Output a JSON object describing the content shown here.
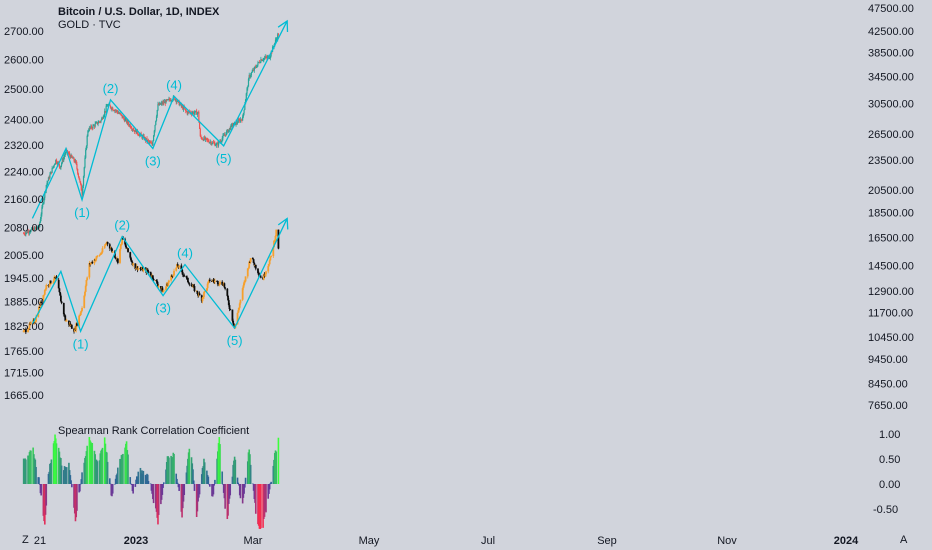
{
  "header": {
    "title": "Bitcoin / U.S. Dollar, 1D, INDEX",
    "subtitle": "GOLD · TVC"
  },
  "indicator": {
    "title": "Spearman Rank Correlation Coefficient"
  },
  "corner": {
    "left": "Z",
    "right": "A"
  },
  "colors": {
    "background": "#d1d4dc",
    "bull": "#26a69a",
    "bear": "#ef5350",
    "gold_up": "#f6a02d",
    "gold_down": "#0c0c0c",
    "wave": "#00bcd4",
    "hist_pos_low": "#2e5d9c",
    "hist_pos_high": "#3cff3c",
    "hist_neg_low": "#5a3aa0",
    "hist_neg_high": "#ff2a4a"
  },
  "chart_data": [
    {
      "type": "candlestick",
      "name": "Bitcoin / U.S. Dollar",
      "axis": "right",
      "y_ticks": [
        "47500.00",
        "42500.00",
        "38500.00",
        "34500.00",
        "30500.00",
        "26500.00",
        "23500.00",
        "20500.00",
        "18500.00",
        "16500.00",
        "14500.00",
        "12900.00",
        "11700.00",
        "10450.00",
        "9450.00",
        "8450.00",
        "7650.00"
      ],
      "x_labels": [
        "21",
        "2023",
        "Mar",
        "May",
        "Jul",
        "Sep",
        "Nov",
        "2024"
      ],
      "anchors": [
        {
          "x": "2022-12-20",
          "y": 16800
        },
        {
          "x": "2023-01-10",
          "y": 17300
        },
        {
          "x": "2023-01-20",
          "y": 21000
        },
        {
          "x": "2023-02-02",
          "y": 23500
        },
        {
          "x": "2023-02-08",
          "y": 22800
        },
        {
          "x": "2023-02-16",
          "y": 24500
        },
        {
          "x": "2023-03-01",
          "y": 23300
        },
        {
          "x": "2023-03-10",
          "y": 20200
        },
        {
          "x": "2023-03-18",
          "y": 27000
        },
        {
          "x": "2023-04-05",
          "y": 28200
        },
        {
          "x": "2023-04-14",
          "y": 30300
        },
        {
          "x": "2023-04-28",
          "y": 29300
        },
        {
          "x": "2023-05-20",
          "y": 27000
        },
        {
          "x": "2023-06-14",
          "y": 25200
        },
        {
          "x": "2023-06-22",
          "y": 30200
        },
        {
          "x": "2023-07-14",
          "y": 31300
        },
        {
          "x": "2023-07-31",
          "y": 29300
        },
        {
          "x": "2023-08-16",
          "y": 29200
        },
        {
          "x": "2023-08-19",
          "y": 26100
        },
        {
          "x": "2023-09-11",
          "y": 25200
        },
        {
          "x": "2023-10-01",
          "y": 27500
        },
        {
          "x": "2023-10-16",
          "y": 28500
        },
        {
          "x": "2023-10-25",
          "y": 34500
        },
        {
          "x": "2023-11-10",
          "y": 37300
        },
        {
          "x": "2023-11-22",
          "y": 37800
        },
        {
          "x": "2023-12-04",
          "y": 42000
        },
        {
          "x": "2023-12-06",
          "y": 44000
        }
      ],
      "elliott_wave": [
        {
          "label": "",
          "x": "2023-01-01",
          "y": 18000
        },
        {
          "label": "",
          "x": "2023-02-16",
          "y": 24800
        },
        {
          "label": "(1)",
          "x": "2023-03-10",
          "y": 19600
        },
        {
          "label": "(2)",
          "x": "2023-04-18",
          "y": 31000
        },
        {
          "label": "(3)",
          "x": "2023-06-15",
          "y": 24800
        },
        {
          "label": "(4)",
          "x": "2023-07-14",
          "y": 31500
        },
        {
          "label": "(5)",
          "x": "2023-09-20",
          "y": 25100
        },
        {
          "label": "",
          "x": "2023-12-16",
          "y": 44500
        }
      ]
    },
    {
      "type": "bar",
      "name": "GOLD · TVC",
      "axis": "left",
      "y_ticks": [
        "2700.00",
        "2600.00",
        "2500.00",
        "2400.00",
        "2320.00",
        "2240.00",
        "2160.00",
        "2080.00",
        "2005.00",
        "1945.00",
        "1885.00",
        "1825.00",
        "1765.00",
        "1715.00",
        "1665.00"
      ],
      "anchors": [
        {
          "x": "2022-12-20",
          "y": 1810
        },
        {
          "x": "2023-01-05",
          "y": 1840
        },
        {
          "x": "2023-01-20",
          "y": 1925
        },
        {
          "x": "2023-02-02",
          "y": 1945
        },
        {
          "x": "2023-02-15",
          "y": 1840
        },
        {
          "x": "2023-02-28",
          "y": 1815
        },
        {
          "x": "2023-03-10",
          "y": 1870
        },
        {
          "x": "2023-03-20",
          "y": 1980
        },
        {
          "x": "2023-04-05",
          "y": 2010
        },
        {
          "x": "2023-04-13",
          "y": 2040
        },
        {
          "x": "2023-04-28",
          "y": 1990
        },
        {
          "x": "2023-05-04",
          "y": 2050
        },
        {
          "x": "2023-05-20",
          "y": 1975
        },
        {
          "x": "2023-06-10",
          "y": 1960
        },
        {
          "x": "2023-06-29",
          "y": 1910
        },
        {
          "x": "2023-07-19",
          "y": 1978
        },
        {
          "x": "2023-08-01",
          "y": 1940
        },
        {
          "x": "2023-08-21",
          "y": 1892
        },
        {
          "x": "2023-09-01",
          "y": 1940
        },
        {
          "x": "2023-09-20",
          "y": 1930
        },
        {
          "x": "2023-10-05",
          "y": 1820
        },
        {
          "x": "2023-10-16",
          "y": 1915
        },
        {
          "x": "2023-10-27",
          "y": 2000
        },
        {
          "x": "2023-11-12",
          "y": 1940
        },
        {
          "x": "2023-11-24",
          "y": 2000
        },
        {
          "x": "2023-12-01",
          "y": 2070
        },
        {
          "x": "2023-12-04",
          "y": 2025
        }
      ],
      "elliott_wave": [
        {
          "label": "",
          "x": "2023-01-01",
          "y": 1830
        },
        {
          "label": "",
          "x": "2023-02-09",
          "y": 1962
        },
        {
          "label": "(1)",
          "x": "2023-03-08",
          "y": 1812
        },
        {
          "label": "(2)",
          "x": "2023-05-04",
          "y": 2055
        },
        {
          "label": "(3)",
          "x": "2023-06-29",
          "y": 1900
        },
        {
          "label": "(4)",
          "x": "2023-07-29",
          "y": 1980
        },
        {
          "label": "(5)",
          "x": "2023-10-05",
          "y": 1820
        },
        {
          "label": "",
          "x": "2023-12-16",
          "y": 2105
        }
      ]
    },
    {
      "type": "histogram",
      "name": "Spearman Rank Correlation Coefficient",
      "axis": "right",
      "y_ticks": [
        "1.00",
        "0.50",
        "0.00",
        "-0.50"
      ],
      "ylim": [
        -0.95,
        1.05
      ],
      "anchors": [
        {
          "x": "2022-12-20",
          "y": 0.45
        },
        {
          "x": "2023-01-02",
          "y": 0.7
        },
        {
          "x": "2023-01-10",
          "y": 0.1
        },
        {
          "x": "2023-01-18",
          "y": -0.85
        },
        {
          "x": "2023-01-23",
          "y": 0.2
        },
        {
          "x": "2023-02-01",
          "y": 0.97
        },
        {
          "x": "2023-02-12",
          "y": 0.3
        },
        {
          "x": "2023-02-20",
          "y": 0.4
        },
        {
          "x": "2023-03-01",
          "y": -0.75
        },
        {
          "x": "2023-03-10",
          "y": 0.2
        },
        {
          "x": "2023-03-20",
          "y": 0.95
        },
        {
          "x": "2023-04-01",
          "y": 0.4
        },
        {
          "x": "2023-04-10",
          "y": 0.95
        },
        {
          "x": "2023-04-20",
          "y": -0.3
        },
        {
          "x": "2023-05-01",
          "y": 0.5
        },
        {
          "x": "2023-05-10",
          "y": 0.85
        },
        {
          "x": "2023-05-18",
          "y": -0.2
        },
        {
          "x": "2023-05-28",
          "y": 0.3
        },
        {
          "x": "2023-06-10",
          "y": 0.1
        },
        {
          "x": "2023-06-22",
          "y": -0.75
        },
        {
          "x": "2023-07-05",
          "y": 0.5
        },
        {
          "x": "2023-07-14",
          "y": 0.6
        },
        {
          "x": "2023-07-25",
          "y": -0.65
        },
        {
          "x": "2023-08-05",
          "y": 0.9
        },
        {
          "x": "2023-08-14",
          "y": -0.6
        },
        {
          "x": "2023-08-24",
          "y": 0.5
        },
        {
          "x": "2023-09-05",
          "y": -0.3
        },
        {
          "x": "2023-09-14",
          "y": 0.92
        },
        {
          "x": "2023-09-24",
          "y": -0.85
        },
        {
          "x": "2023-10-05",
          "y": 0.6
        },
        {
          "x": "2023-10-15",
          "y": -0.55
        },
        {
          "x": "2023-10-25",
          "y": 0.7
        },
        {
          "x": "2023-11-05",
          "y": -0.85
        },
        {
          "x": "2023-11-12",
          "y": -0.9
        },
        {
          "x": "2023-11-20",
          "y": -0.3
        },
        {
          "x": "2023-11-28",
          "y": 0.5
        },
        {
          "x": "2023-12-04",
          "y": 0.9
        }
      ]
    }
  ]
}
